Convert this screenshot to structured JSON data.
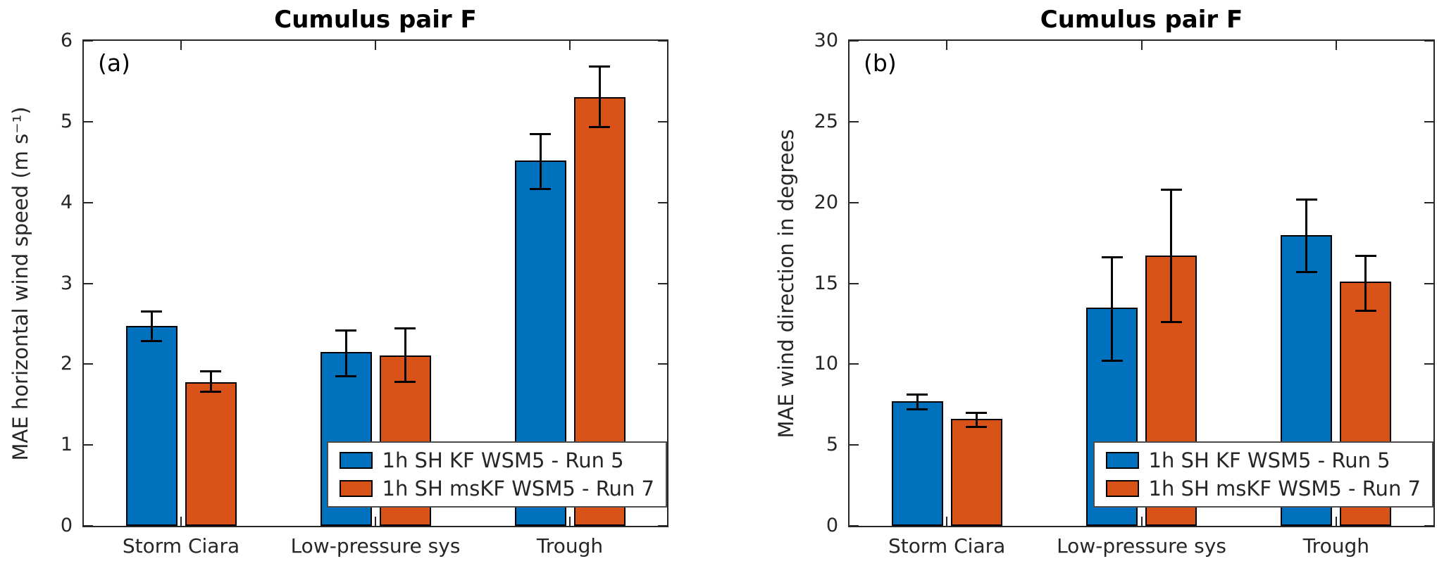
{
  "figure": {
    "panel_labels": [
      "(a)",
      "(b)"
    ]
  },
  "chart_data": [
    {
      "type": "bar",
      "panel_label": "(a)",
      "title": "Cumulus pair F",
      "ylabel": "MAE horizontal wind speed (m s⁻¹)",
      "categories": [
        "Storm Ciara",
        "Low-pressure sys",
        "Trough"
      ],
      "series": [
        {
          "name": "1h SH KF WSM5 - Run 5",
          "color": "#0072BD",
          "values": [
            2.47,
            2.15,
            4.52
          ],
          "err_low": [
            0.18,
            0.3,
            0.35
          ],
          "err_high": [
            0.18,
            0.27,
            0.33
          ]
        },
        {
          "name": "1h SH msKF WSM5 - Run 7",
          "color": "#D95319",
          "values": [
            1.78,
            2.11,
            5.3
          ],
          "err_low": [
            0.12,
            0.33,
            0.37
          ],
          "err_high": [
            0.13,
            0.33,
            0.38
          ]
        }
      ],
      "ylim": [
        0,
        6
      ],
      "yticks": [
        0,
        1,
        2,
        3,
        4,
        5,
        6
      ],
      "grid": false,
      "legend_position": "inside-lower-right",
      "error_bar_color": "#000000",
      "bar_edge_color": "#000000",
      "axis_color": "#262626"
    },
    {
      "type": "bar",
      "panel_label": "(b)",
      "title": "Cumulus pair F",
      "ylabel": "MAE wind direction in degrees",
      "categories": [
        "Storm Ciara",
        "Low-pressure sys",
        "Trough"
      ],
      "series": [
        {
          "name": "1h SH KF WSM5 - Run 5",
          "color": "#0072BD",
          "values": [
            7.7,
            13.5,
            18.0
          ],
          "err_low": [
            0.5,
            3.3,
            2.3
          ],
          "err_high": [
            0.4,
            3.1,
            2.2
          ]
        },
        {
          "name": "1h SH msKF WSM5 - Run 7",
          "color": "#D95319",
          "values": [
            6.6,
            16.7,
            15.1
          ],
          "err_low": [
            0.5,
            4.1,
            1.8
          ],
          "err_high": [
            0.4,
            4.1,
            1.6
          ]
        }
      ],
      "ylim": [
        0,
        30
      ],
      "yticks": [
        0,
        5,
        10,
        15,
        20,
        25,
        30
      ],
      "grid": false,
      "legend_position": "inside-lower-right",
      "error_bar_color": "#000000",
      "bar_edge_color": "#000000",
      "axis_color": "#262626"
    }
  ]
}
